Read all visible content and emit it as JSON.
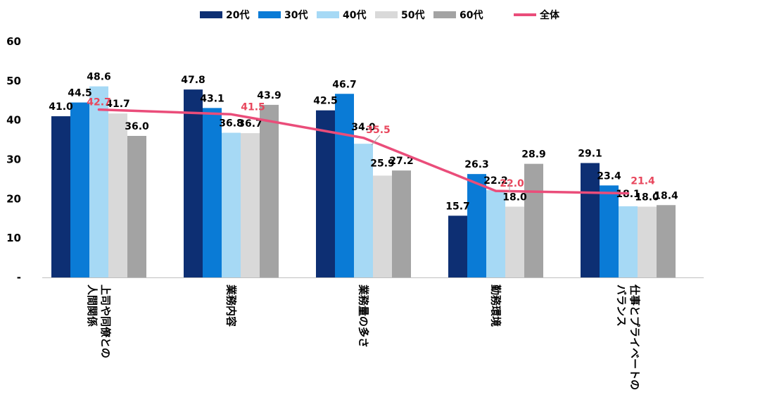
{
  "chart_data": {
    "type": "bar",
    "title": "",
    "xlabel": "",
    "ylabel": "",
    "ylim": [
      0,
      60
    ],
    "yticks": [
      {
        "value": 0,
        "label": "-"
      },
      {
        "value": 10,
        "label": "10"
      },
      {
        "value": 20,
        "label": "20"
      },
      {
        "value": 30,
        "label": "30"
      },
      {
        "value": 40,
        "label": "40"
      },
      {
        "value": 50,
        "label": "50"
      },
      {
        "value": 60,
        "label": "60"
      }
    ],
    "grid": false,
    "legend_position": "top",
    "categories": [
      {
        "lines": [
          "上司や同僚との",
          "人間関係"
        ]
      },
      {
        "lines": [
          "業務内容"
        ]
      },
      {
        "lines": [
          "業務量の多さ"
        ]
      },
      {
        "lines": [
          "勤務環境"
        ]
      },
      {
        "lines": [
          "仕事とプライベートの",
          "バランス"
        ]
      }
    ],
    "series": [
      {
        "name": "20代",
        "color": "#0d2f73",
        "values": [
          41.0,
          47.8,
          42.5,
          15.7,
          29.1
        ],
        "labels": [
          "41.0",
          "47.8",
          "42.5",
          "15.7",
          "29.1"
        ]
      },
      {
        "name": "30代",
        "color": "#0a7bd6",
        "values": [
          44.5,
          43.1,
          46.7,
          26.3,
          23.4
        ],
        "labels": [
          "44.5",
          "43.1",
          "46.7",
          "26.3",
          "23.4"
        ]
      },
      {
        "name": "40代",
        "color": "#a6d9f5",
        "values": [
          48.6,
          36.8,
          34.0,
          22.2,
          18.1
        ],
        "labels": [
          "48.6",
          "36.8",
          "34.0",
          "22.2",
          "18.1"
        ]
      },
      {
        "name": "50代",
        "color": "#d9d9d9",
        "values": [
          41.7,
          36.7,
          25.9,
          18.0,
          18.0
        ],
        "labels": [
          "41.7",
          "36.7",
          "25.9",
          "18.0",
          "18.0"
        ]
      },
      {
        "name": "60代",
        "color": "#a3a3a3",
        "values": [
          36.0,
          43.9,
          27.2,
          28.9,
          18.4
        ],
        "labels": [
          "36.0",
          "43.9",
          "27.2",
          "28.9",
          "18.4"
        ]
      }
    ],
    "line_series": {
      "name": "全体",
      "color": "#ea4d7a",
      "label_color": "#e8475d",
      "values": [
        42.7,
        41.5,
        35.5,
        22.0,
        21.4
      ],
      "labels": [
        "42.7",
        "41.5",
        "35.5",
        "22.0",
        "21.4"
      ]
    }
  }
}
